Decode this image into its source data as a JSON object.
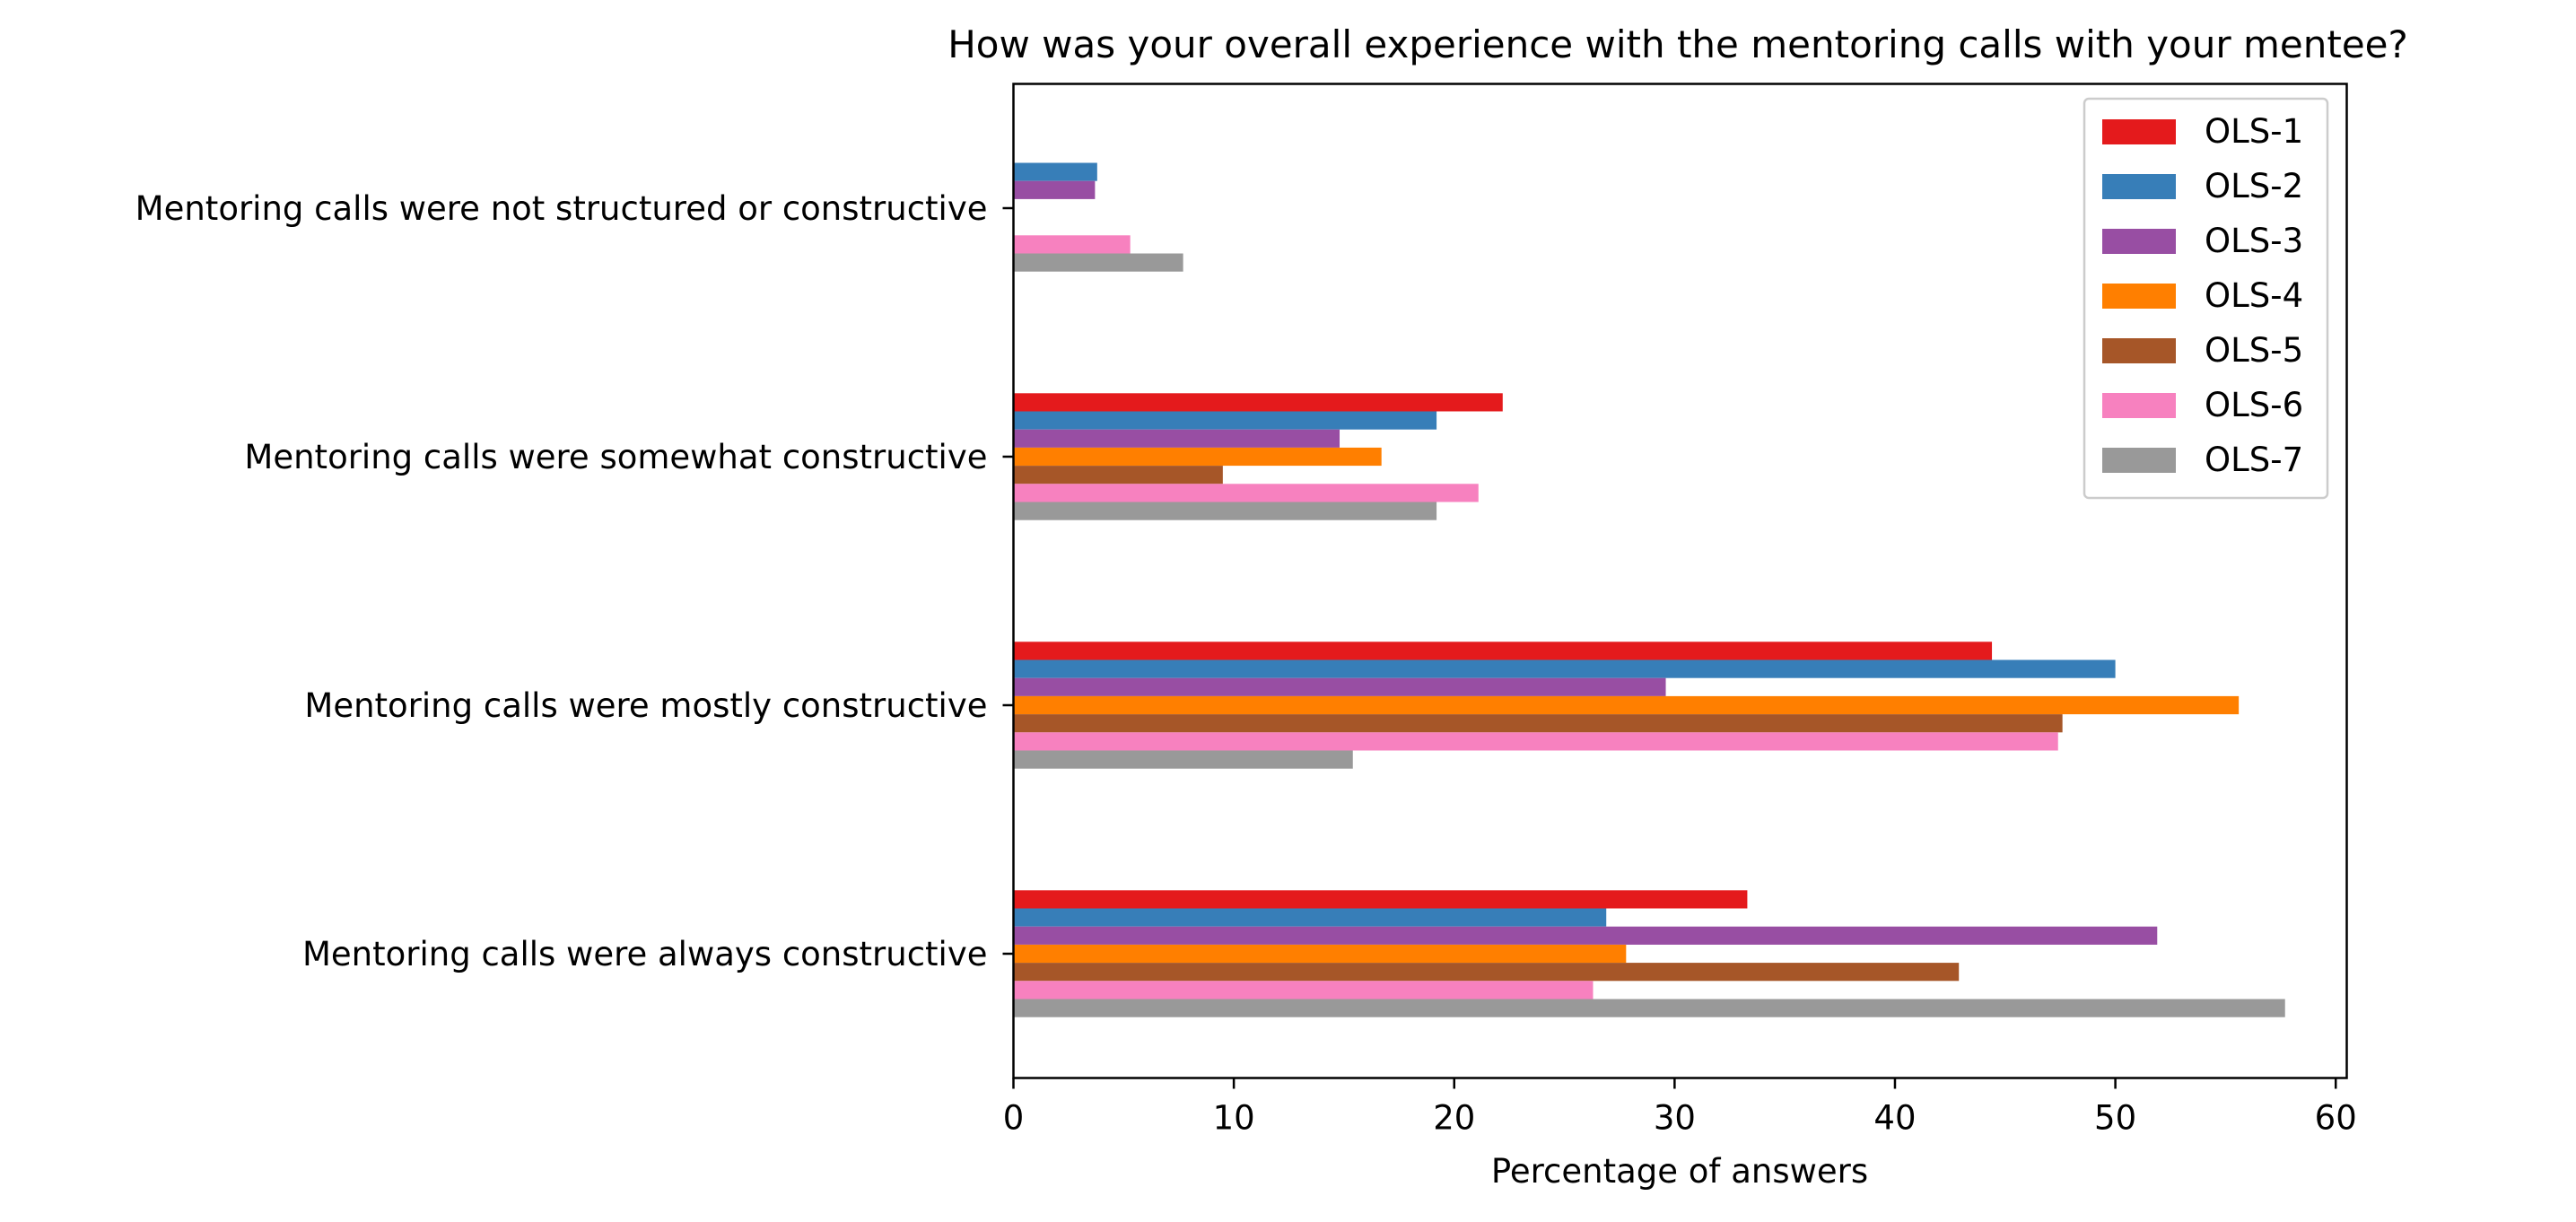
{
  "chart_data": {
    "type": "bar",
    "orientation": "horizontal",
    "title": "How was your overall experience with the mentoring calls with your mentee?",
    "xlabel": "Percentage of answers",
    "ylabel": "",
    "xlim": [
      0,
      60.5
    ],
    "xticks": [
      0,
      10,
      20,
      30,
      40,
      50,
      60
    ],
    "grid": false,
    "legend_position": "top-right",
    "categories": [
      "Mentoring calls were always constructive",
      "Mentoring calls were mostly constructive",
      "Mentoring calls were somewhat constructive",
      "Mentoring calls were not structured or constructive"
    ],
    "series": [
      {
        "name": "OLS-1",
        "color": "#e41a1c",
        "values": [
          33.3,
          44.4,
          22.2,
          0
        ]
      },
      {
        "name": "OLS-2",
        "color": "#377eb8",
        "values": [
          26.9,
          50.0,
          19.2,
          3.8
        ]
      },
      {
        "name": "OLS-3",
        "color": "#984ea3",
        "values": [
          51.9,
          29.6,
          14.8,
          3.7
        ]
      },
      {
        "name": "OLS-4",
        "color": "#ff7f00",
        "values": [
          27.8,
          55.6,
          16.7,
          0
        ]
      },
      {
        "name": "OLS-5",
        "color": "#a65628",
        "values": [
          42.9,
          47.6,
          9.5,
          0
        ]
      },
      {
        "name": "OLS-6",
        "color": "#f781bf",
        "values": [
          26.3,
          47.4,
          21.1,
          5.3
        ]
      },
      {
        "name": "OLS-7",
        "color": "#999999",
        "values": [
          57.7,
          15.4,
          19.2,
          7.7
        ]
      }
    ]
  }
}
